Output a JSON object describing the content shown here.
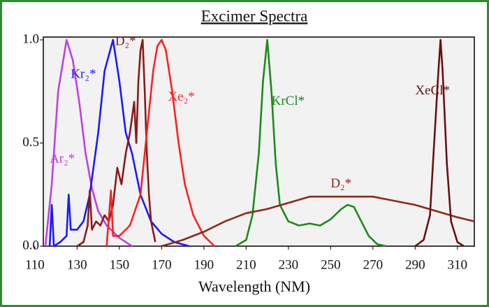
{
  "chart_data": {
    "type": "line",
    "title": "Excimer Spectra",
    "x_label": "Wavelength (NM)",
    "xlim": [
      114,
      318
    ],
    "xticks": [
      110,
      130,
      150,
      170,
      190,
      210,
      230,
      250,
      270,
      290,
      310
    ],
    "ylim": [
      0,
      1
    ],
    "yticks": [
      {
        "value": 0,
        "label": "0.0"
      },
      {
        "value": 0.5,
        "label": "0.5"
      },
      {
        "value": 1,
        "label": "1.0"
      }
    ],
    "series": [
      {
        "name": "Ar₂*",
        "color": "#c040e0",
        "x": [
          115,
          118,
          121,
          125,
          128,
          131,
          134,
          137,
          140,
          144,
          150,
          156
        ],
        "values": [
          0,
          0.3,
          0.75,
          1.0,
          0.9,
          0.7,
          0.45,
          0.28,
          0.17,
          0.1,
          0.04,
          0
        ]
      },
      {
        "name": "Kr₂*",
        "color": "#1a1aff",
        "x": [
          117,
          118,
          119,
          122,
          125,
          126,
          127,
          130,
          133,
          136,
          140,
          143,
          147,
          150,
          153,
          156,
          160,
          165,
          170,
          176,
          183
        ],
        "values": [
          0,
          0.2,
          0,
          0.02,
          0.05,
          0.25,
          0.08,
          0.08,
          0.12,
          0.25,
          0.55,
          0.85,
          1.0,
          0.8,
          0.55,
          0.45,
          0.25,
          0.12,
          0.06,
          0.02,
          0
        ]
      },
      {
        "name": "D₂*",
        "color": "#8b1a1a",
        "x": [
          130,
          133,
          135,
          136,
          137,
          139,
          141,
          143,
          145,
          147,
          149,
          151,
          153,
          155,
          157,
          158,
          159,
          160,
          161,
          162,
          163,
          164,
          165,
          167
        ],
        "values": [
          0,
          0.02,
          0.1,
          0.27,
          0.08,
          0.12,
          0.1,
          0.15,
          0.12,
          0.2,
          0.38,
          0.3,
          0.45,
          0.55,
          0.7,
          0.5,
          0.8,
          0.95,
          1.0,
          0.75,
          0.45,
          0.25,
          0.12,
          0.02
        ]
      },
      {
        "name": "Xe₂*",
        "color": "#ff2020",
        "x": [
          144,
          146,
          147,
          150,
          155,
          160,
          163,
          166,
          168,
          170,
          172,
          175,
          178,
          181,
          185,
          190,
          195
        ],
        "values": [
          0,
          0.27,
          0.05,
          0.05,
          0.1,
          0.25,
          0.55,
          0.85,
          0.97,
          1.0,
          0.95,
          0.75,
          0.5,
          0.3,
          0.15,
          0.05,
          0
        ]
      },
      {
        "name": "KrCl*",
        "color": "#1a8c1a",
        "x": [
          205,
          210,
          213,
          216,
          218,
          220,
          222,
          224,
          226,
          230,
          235,
          240,
          245,
          250,
          255,
          258,
          261,
          264,
          268,
          272,
          276
        ],
        "values": [
          0,
          0.03,
          0.15,
          0.45,
          0.8,
          1.0,
          0.75,
          0.4,
          0.2,
          0.12,
          0.1,
          0.11,
          0.1,
          0.13,
          0.18,
          0.2,
          0.19,
          0.13,
          0.05,
          0.01,
          0
        ]
      },
      {
        "name": "D₂*",
        "color": "#8b2a1a",
        "x": [
          170,
          180,
          190,
          200,
          210,
          220,
          230,
          240,
          250,
          260,
          270,
          280,
          290,
          300,
          310,
          318
        ],
        "values": [
          0,
          0.03,
          0.07,
          0.12,
          0.16,
          0.18,
          0.21,
          0.24,
          0.24,
          0.24,
          0.24,
          0.22,
          0.2,
          0.17,
          0.14,
          0.12
        ]
      },
      {
        "name": "XeCl*",
        "color": "#6a1010",
        "x": [
          290,
          294,
          297,
          299,
          301,
          302,
          303,
          305,
          307,
          310,
          313
        ],
        "values": [
          0,
          0.03,
          0.15,
          0.5,
          0.85,
          1.0,
          0.85,
          0.4,
          0.12,
          0.02,
          0
        ]
      }
    ]
  }
}
